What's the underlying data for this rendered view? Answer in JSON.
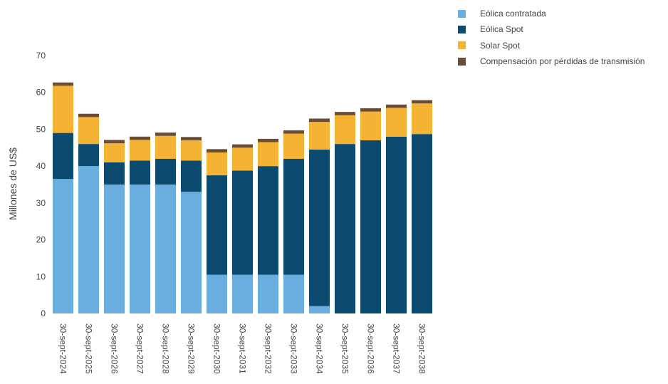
{
  "chart_data": {
    "type": "bar",
    "stacked": true,
    "title": "",
    "xlabel": "",
    "ylabel": "Millones de US$",
    "ylim": [
      0,
      70
    ],
    "yticks": [
      0,
      10,
      20,
      30,
      40,
      50,
      60,
      70
    ],
    "grid": false,
    "legend_position": "top-right",
    "categories": [
      "30-sept-2024",
      "30-sept-2025",
      "30-sept-2026",
      "30-sept-2027",
      "30-sept-2028",
      "30-sept-2029",
      "30-sept-2030",
      "30-sept-2031",
      "30-sept-2032",
      "30-sept-2033",
      "30-sept-2034",
      "30-sept-2035",
      "30-sept-2036",
      "30-sept-2037",
      "30-sept-2038"
    ],
    "series": [
      {
        "name": "Eólica contratada",
        "color": "#6aaee0",
        "values": [
          36.5,
          40.0,
          35.0,
          35.0,
          35.0,
          33.0,
          10.5,
          10.5,
          10.5,
          10.5,
          2.0,
          0,
          0,
          0,
          0
        ]
      },
      {
        "name": "Eólica Spot",
        "color": "#0d4a70",
        "values": [
          12.5,
          6.0,
          6.0,
          6.5,
          7.0,
          8.5,
          27.0,
          28.3,
          29.5,
          31.5,
          42.5,
          46.0,
          47.0,
          48.0,
          48.7
        ]
      },
      {
        "name": "Solar Spot",
        "color": "#f5b335",
        "values": [
          12.8,
          7.3,
          5.2,
          5.6,
          6.2,
          5.5,
          6.2,
          6.2,
          6.5,
          6.8,
          7.5,
          7.8,
          7.8,
          7.8,
          8.3
        ]
      },
      {
        "name": "Compensación por pérdidas de transmisión",
        "color": "#6b4d34",
        "values": [
          0.9,
          0.9,
          0.9,
          0.9,
          0.9,
          0.9,
          0.9,
          0.9,
          0.9,
          0.9,
          0.9,
          0.9,
          0.9,
          0.9,
          0.9
        ]
      }
    ]
  }
}
